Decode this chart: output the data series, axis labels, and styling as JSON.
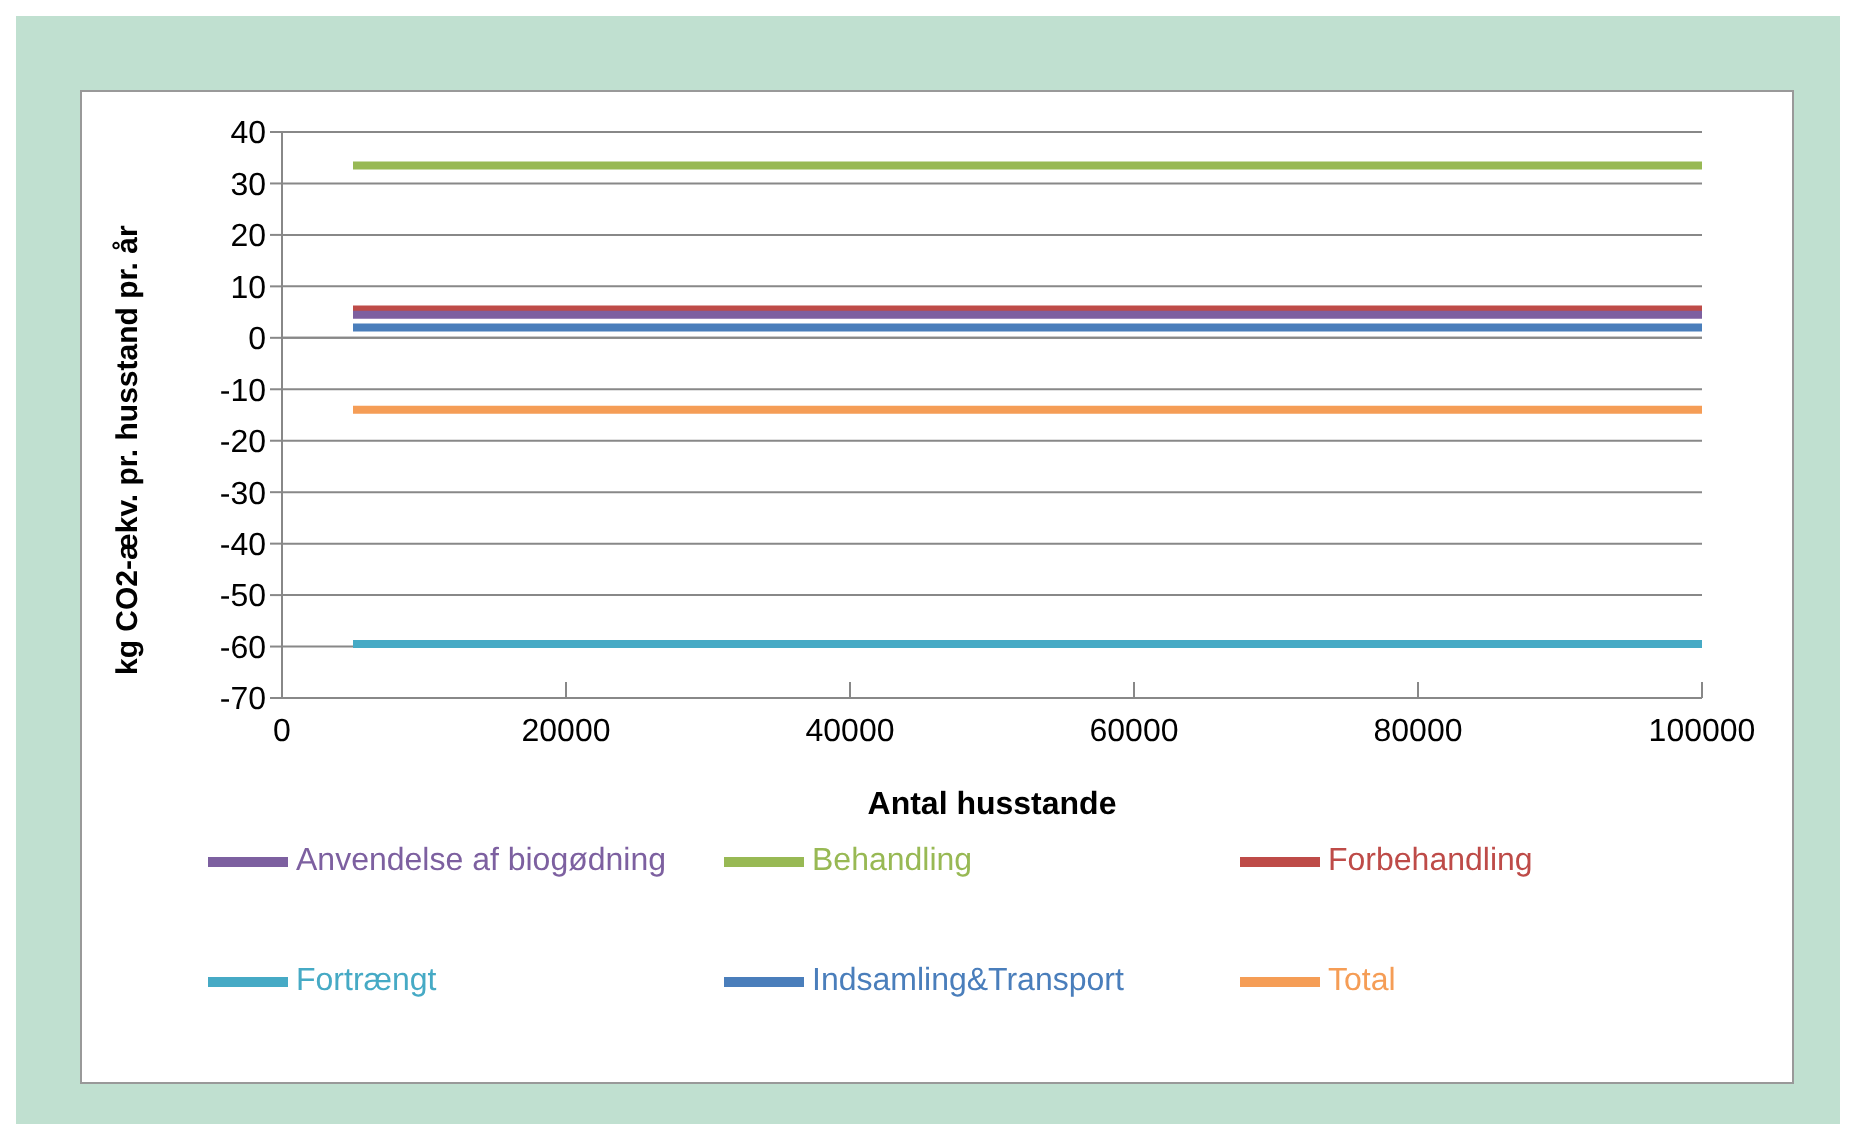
{
  "chart_data": {
    "type": "line",
    "xlabel": "Antal husstande",
    "ylabel": "kg CO2-ækv. pr. husstand  pr. år",
    "x": [
      5000,
      100000
    ],
    "series": [
      {
        "name": "Indsamling&Transport",
        "color": "#4a7ebb",
        "values": [
          2,
          2
        ]
      },
      {
        "name": "Forbehandling",
        "color": "#be4b48",
        "values": [
          5.5,
          5.5
        ]
      },
      {
        "name": "Behandling",
        "color": "#98b954",
        "values": [
          33.5,
          33.5
        ]
      },
      {
        "name": "Anvendelse af biogødning",
        "color": "#7d60a0",
        "values": [
          4.5,
          4.5
        ]
      },
      {
        "name": "Fortrængt",
        "color": "#46aac5",
        "values": [
          -59.5,
          -59.5
        ]
      },
      {
        "name": "Total",
        "color": "#f59d56",
        "values": [
          -14,
          -14
        ]
      }
    ],
    "xlim": [
      0,
      100000
    ],
    "xticks": [
      0,
      20000,
      40000,
      60000,
      80000,
      100000
    ],
    "ylim": [
      -70,
      40
    ],
    "yticks": [
      -70,
      -60,
      -50,
      -40,
      -30,
      -20,
      -10,
      0,
      10,
      20,
      30,
      40
    ],
    "grid": "y",
    "legend": "bottom",
    "marker": "none",
    "line_style": "solid"
  }
}
